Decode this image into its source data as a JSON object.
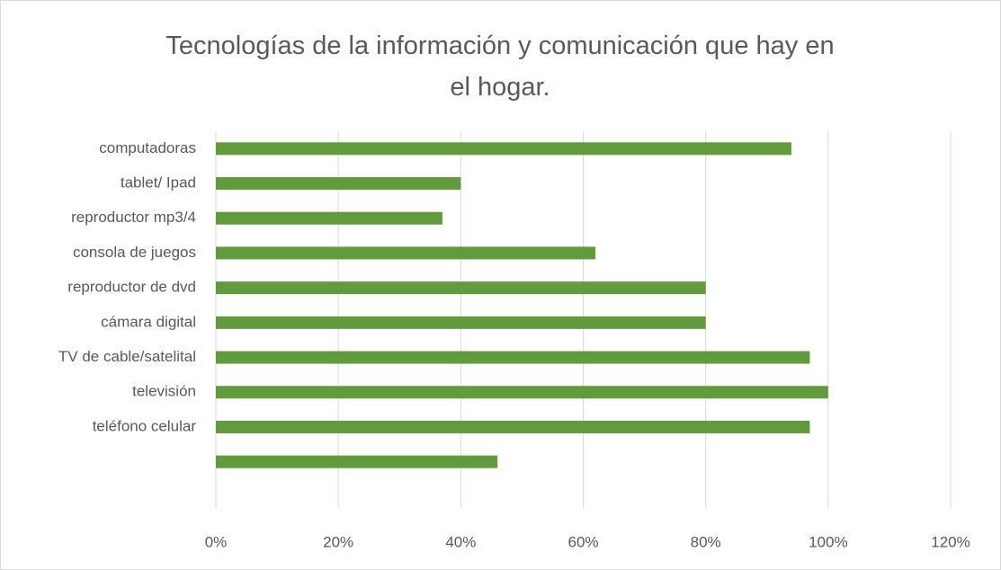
{
  "chart_data": {
    "type": "bar",
    "orientation": "horizontal",
    "title": "Tecnologías de la información y comunicación que hay en el hogar.",
    "categories": [
      "computadoras",
      "tablet/ Ipad",
      "reproductor mp3/4",
      "consola de juegos",
      "reproductor de dvd",
      "cámara digital",
      "TV de cable/satelital",
      "televisión",
      "teléfono celular",
      null
    ],
    "values": [
      94,
      40,
      37,
      62,
      80,
      80,
      97,
      100,
      97,
      46
    ],
    "color": "#629a3e",
    "xlim": [
      0,
      120
    ],
    "xticks": [
      {
        "value": 0,
        "label": "0%"
      },
      {
        "value": 20,
        "label": "20%"
      },
      {
        "value": 40,
        "label": "40%"
      },
      {
        "value": 60,
        "label": "60%"
      },
      {
        "value": 80,
        "label": "80%"
      },
      {
        "value": 100,
        "label": "100%"
      },
      {
        "value": 120,
        "label": "120%"
      }
    ],
    "grid": true
  }
}
